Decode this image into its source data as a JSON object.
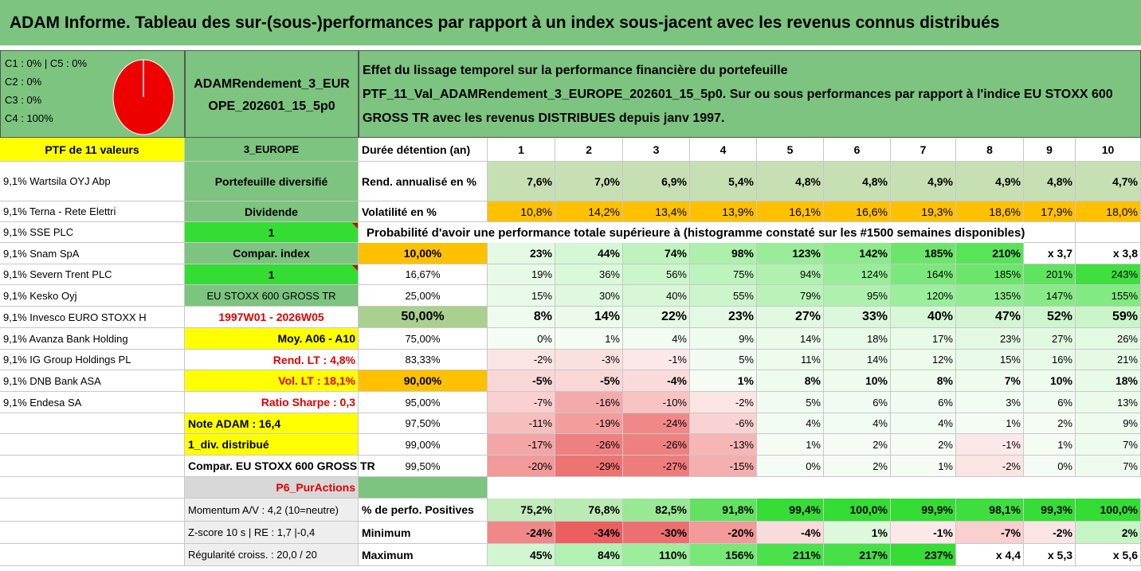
{
  "title": "ADAM Informe. Tableau des sur-(sous-)performances par rapport à un index sous-jacent avec les revenus connus distribués",
  "legend": [
    "C1 : 0% | C5 : 0%",
    "C2 : 0%",
    "C3 : 0%",
    "C4 : 100%"
  ],
  "pie_chart": {
    "type": "pie",
    "categories": [
      "C1",
      "C2",
      "C3",
      "C4",
      "C5"
    ],
    "values": [
      0,
      0,
      0,
      100,
      0
    ],
    "color": "#ee0000"
  },
  "portfolio_name": "ADAMRendement_3_EUROPE_202601_15_5p0",
  "description": {
    "line1": "Effet du lissage temporel sur la performance financière du portefeuille",
    "line2": "PTF_11_Val_ADAMRendement_3_EUROPE_202601_15_5p0. Sur ou sous performances par rapport à l'indice EU STOXX 600",
    "line3": "GROSS TR avec les revenus DISTRIBUES depuis janv 1997."
  },
  "left_column": {
    "header": "PTF de 11 valeurs",
    "holdings": [
      "9,1% Wartsila OYJ Abp",
      "9,1% Terna - Rete Elettri",
      "9,1% SSE PLC",
      "9,1% Snam SpA",
      "9,1% Severn Trent PLC",
      "9,1% Kesko Oyj",
      "9,1% Invesco EURO STOXX H",
      "9,1% Avanza Bank Holding",
      "9,1% IG Group Holdings PL",
      "9,1% DNB Bank ASA",
      "9,1% Endesa SA"
    ]
  },
  "middle_column": {
    "region": "3_EUROPE",
    "type": "Portefeuille diversifié",
    "dividend_label": "Dividende",
    "dividend_value": "1",
    "compar_index_label": "Compar. index",
    "compar_index_value": "1",
    "index_name": "EU STOXX 600 GROSS TR",
    "period": "1997W01 - 2026W05",
    "moy": "Moy. A06 - A10",
    "rend_lt": "Rend. LT : 4,8%",
    "vol_lt": "Vol. LT : 18,1%",
    "sharpe": "Ratio Sharpe : 0,3",
    "note_adam": "Note ADAM : 16,4",
    "div_distrib": "1_div. distribué",
    "compar_full": "Compar. EU STOXX 600 GROSS TR",
    "p6": "P6_PurActions",
    "momentum": "Momentum A/V : 4,2 (10=neutre)",
    "zscore": "Z-score 10 s | RE : 1,7 |-0,4",
    "regularite": "Régularité croiss. : 20,0 / 20"
  },
  "table": {
    "duration_label": "Durée détention (an)",
    "years": [
      "1",
      "2",
      "3",
      "4",
      "5",
      "6",
      "7",
      "8",
      "9",
      "10"
    ],
    "rend_label": "Rend. annualisé en %",
    "rend": [
      "7,6%",
      "7,0%",
      "6,9%",
      "5,4%",
      "4,8%",
      "4,8%",
      "4,9%",
      "4,9%",
      "4,8%",
      "4,7%"
    ],
    "vol_label": "Volatilité en %",
    "vol": [
      "10,8%",
      "14,2%",
      "13,4%",
      "13,9%",
      "16,1%",
      "16,6%",
      "19,3%",
      "18,6%",
      "17,9%",
      "18,0%"
    ],
    "prob_caption": "Probabilité d'avoir une performance totale supérieure à (histogramme constaté sur les #1500 semaines disponibles)",
    "prob_rows": [
      {
        "pct": "10,00%",
        "vals": [
          "23%",
          "44%",
          "74%",
          "98%",
          "123%",
          "142%",
          "185%",
          "210%",
          "x 3,7",
          "x 3,8"
        ]
      },
      {
        "pct": "16,67%",
        "vals": [
          "19%",
          "36%",
          "56%",
          "75%",
          "94%",
          "124%",
          "164%",
          "185%",
          "201%",
          "243%"
        ]
      },
      {
        "pct": "25,00%",
        "vals": [
          "15%",
          "30%",
          "40%",
          "55%",
          "79%",
          "95%",
          "120%",
          "135%",
          "147%",
          "155%"
        ]
      },
      {
        "pct": "50,00%",
        "vals": [
          "8%",
          "14%",
          "22%",
          "23%",
          "27%",
          "33%",
          "40%",
          "47%",
          "52%",
          "59%"
        ]
      },
      {
        "pct": "75,00%",
        "vals": [
          "0%",
          "1%",
          "4%",
          "9%",
          "14%",
          "18%",
          "17%",
          "23%",
          "27%",
          "26%"
        ]
      },
      {
        "pct": "83,33%",
        "vals": [
          "-2%",
          "-3%",
          "-1%",
          "5%",
          "11%",
          "14%",
          "12%",
          "15%",
          "16%",
          "21%"
        ]
      },
      {
        "pct": "90,00%",
        "vals": [
          "-5%",
          "-5%",
          "-4%",
          "1%",
          "8%",
          "10%",
          "8%",
          "7%",
          "10%",
          "18%"
        ]
      },
      {
        "pct": "95,00%",
        "vals": [
          "-7%",
          "-16%",
          "-10%",
          "-2%",
          "5%",
          "6%",
          "6%",
          "3%",
          "6%",
          "13%"
        ]
      },
      {
        "pct": "97,50%",
        "vals": [
          "-11%",
          "-19%",
          "-24%",
          "-6%",
          "4%",
          "4%",
          "4%",
          "1%",
          "2%",
          "9%"
        ]
      },
      {
        "pct": "99,00%",
        "vals": [
          "-17%",
          "-26%",
          "-26%",
          "-13%",
          "1%",
          "2%",
          "2%",
          "-1%",
          "1%",
          "7%"
        ]
      },
      {
        "pct": "99,50%",
        "vals": [
          "-20%",
          "-29%",
          "-27%",
          "-15%",
          "0%",
          "2%",
          "1%",
          "-2%",
          "0%",
          "7%"
        ]
      }
    ],
    "positive_label": "% de perfo. Positives",
    "positive": [
      "75,2%",
      "76,8%",
      "82,5%",
      "91,8%",
      "99,4%",
      "100,0%",
      "99,9%",
      "98,1%",
      "99,3%",
      "100,0%"
    ],
    "min_label": "Minimum",
    "min": [
      "-24%",
      "-34%",
      "-30%",
      "-20%",
      "-4%",
      "1%",
      "-1%",
      "-7%",
      "-2%",
      "2%"
    ],
    "max_label": "Maximum",
    "max": [
      "45%",
      "84%",
      "110%",
      "156%",
      "211%",
      "217%",
      "237%",
      "x 4,4",
      "x 5,3",
      "x 5,6"
    ]
  },
  "colors": {
    "header_green": "#7cc47f",
    "yellow": "#ffff00",
    "orange": "#ffc000",
    "bright_green": "#33dd33",
    "red_text": "#e00000"
  }
}
